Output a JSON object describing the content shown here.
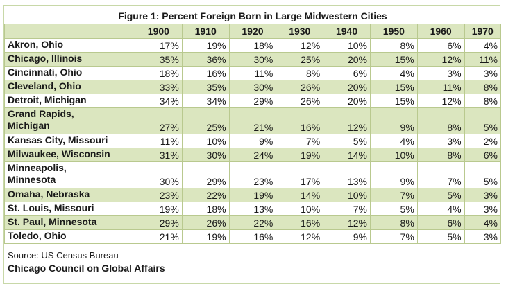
{
  "title": "Figure 1: Percent Foreign Born in Large Midwestern Cities",
  "columns": [
    "1900",
    "1910",
    "1920",
    "1930",
    "1940",
    "1950",
    "1960",
    "1970"
  ],
  "rows": [
    {
      "city": "Akron, Ohio",
      "values": [
        "17%",
        "19%",
        "18%",
        "12%",
        "10%",
        "8%",
        "6%",
        "4%"
      ]
    },
    {
      "city": "Chicago, Illinois",
      "values": [
        "35%",
        "36%",
        "30%",
        "25%",
        "20%",
        "15%",
        "12%",
        "11%"
      ]
    },
    {
      "city": "Cincinnati, Ohio",
      "values": [
        "18%",
        "16%",
        "11%",
        "8%",
        "6%",
        "4%",
        "3%",
        "3%"
      ]
    },
    {
      "city": "Cleveland, Ohio",
      "values": [
        "33%",
        "35%",
        "30%",
        "26%",
        "20%",
        "15%",
        "11%",
        "8%"
      ]
    },
    {
      "city": "Detroit, Michigan",
      "values": [
        "34%",
        "34%",
        "29%",
        "26%",
        "20%",
        "15%",
        "12%",
        "8%"
      ]
    },
    {
      "city": "Grand Rapids, Michigan",
      "values": [
        "27%",
        "25%",
        "21%",
        "16%",
        "12%",
        "9%",
        "8%",
        "5%"
      ]
    },
    {
      "city": "Kansas City, Missouri",
      "values": [
        "11%",
        "10%",
        "9%",
        "7%",
        "5%",
        "4%",
        "3%",
        "2%"
      ]
    },
    {
      "city": "Milwaukee, Wisconsin",
      "values": [
        "31%",
        "30%",
        "24%",
        "19%",
        "14%",
        "10%",
        "8%",
        "6%"
      ]
    },
    {
      "city": "Minneapolis, Minnesota",
      "values": [
        "30%",
        "29%",
        "23%",
        "17%",
        "13%",
        "9%",
        "7%",
        "5%"
      ]
    },
    {
      "city": "Omaha, Nebraska",
      "values": [
        "23%",
        "22%",
        "19%",
        "14%",
        "10%",
        "7%",
        "5%",
        "3%"
      ]
    },
    {
      "city": "St. Louis, Missouri",
      "values": [
        "19%",
        "18%",
        "13%",
        "10%",
        "7%",
        "5%",
        "4%",
        "3%"
      ]
    },
    {
      "city": "St. Paul, Minnesota",
      "values": [
        "29%",
        "26%",
        "22%",
        "16%",
        "12%",
        "8%",
        "6%",
        "4%"
      ]
    },
    {
      "city": "Toledo, Ohio",
      "values": [
        "21%",
        "19%",
        "16%",
        "12%",
        "9%",
        "7%",
        "5%",
        "3%"
      ]
    }
  ],
  "source": "Source: US Census Bureau",
  "publisher": "Chicago Council on Global Affairs",
  "colors": {
    "band": "#dbe6bf",
    "border": "#b9c98f",
    "frame": "#c8d8a8"
  }
}
